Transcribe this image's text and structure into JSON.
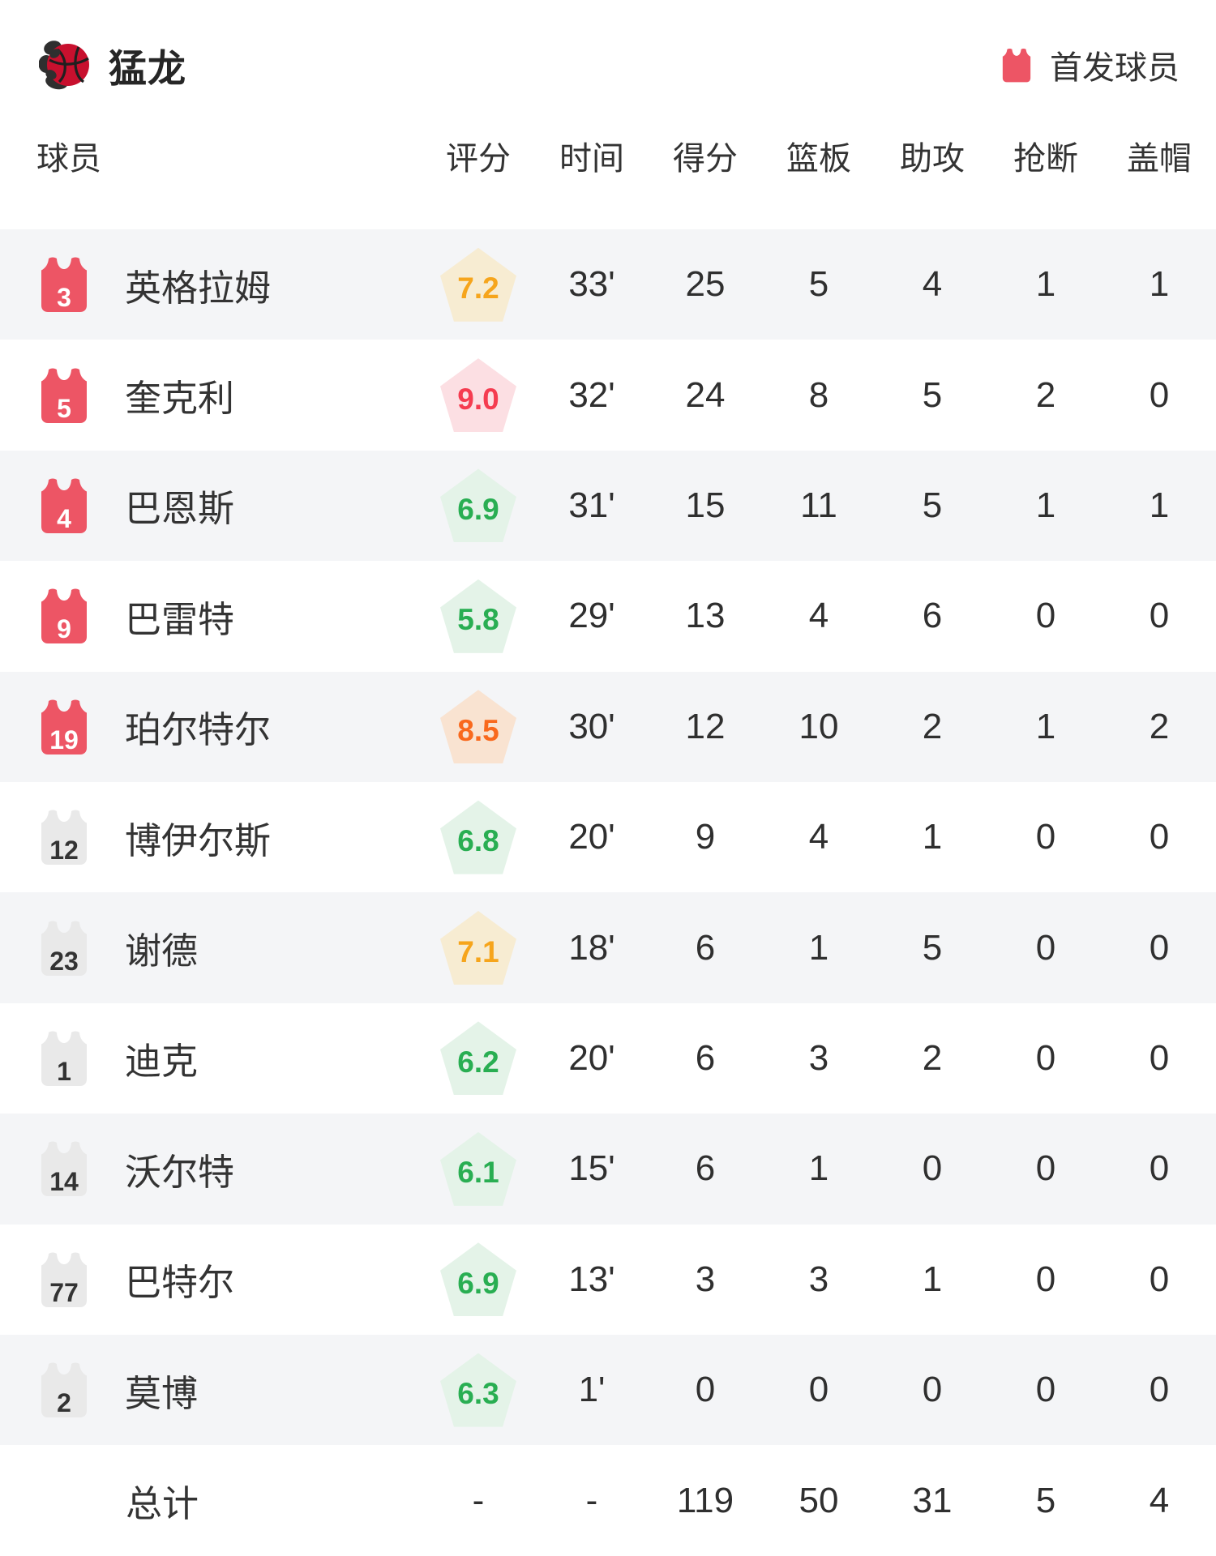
{
  "header": {
    "team_name": "猛龙",
    "legend_label": "首发球员"
  },
  "columns": [
    "球员",
    "评分",
    "时间",
    "得分",
    "篮板",
    "助攻",
    "抢断",
    "盖帽"
  ],
  "colors": {
    "starter_jersey": "#ed5565",
    "starter_jersey_number": "#ffffff",
    "bench_jersey": "#e9e9e9",
    "bench_jersey_number": "#333333",
    "row_alt_bg": "#f4f5f7",
    "logo_ball_red": "#c8102e",
    "logo_claw_black": "#2f2f2f",
    "rating_tiers": {
      "green": {
        "text": "#29ae52",
        "bg": "#e4f3e8"
      },
      "amber": {
        "text": "#f6a51c",
        "bg": "#f7ecd2"
      },
      "orange": {
        "text": "#f9691d",
        "bg": "#f9e3d1"
      },
      "red": {
        "text": "#f53c50",
        "bg": "#fcdfe3"
      }
    }
  },
  "players": [
    {
      "number": "3",
      "starter": true,
      "name": "英格拉姆",
      "rating": "7.2",
      "rating_tier": "amber",
      "minutes": "33'",
      "points": "25",
      "rebounds": "5",
      "assists": "4",
      "steals": "1",
      "blocks": "1"
    },
    {
      "number": "5",
      "starter": true,
      "name": "奎克利",
      "rating": "9.0",
      "rating_tier": "red",
      "minutes": "32'",
      "points": "24",
      "rebounds": "8",
      "assists": "5",
      "steals": "2",
      "blocks": "0"
    },
    {
      "number": "4",
      "starter": true,
      "name": "巴恩斯",
      "rating": "6.9",
      "rating_tier": "green",
      "minutes": "31'",
      "points": "15",
      "rebounds": "11",
      "assists": "5",
      "steals": "1",
      "blocks": "1"
    },
    {
      "number": "9",
      "starter": true,
      "name": "巴雷特",
      "rating": "5.8",
      "rating_tier": "green",
      "minutes": "29'",
      "points": "13",
      "rebounds": "4",
      "assists": "6",
      "steals": "0",
      "blocks": "0"
    },
    {
      "number": "19",
      "starter": true,
      "name": "珀尔特尔",
      "rating": "8.5",
      "rating_tier": "orange",
      "minutes": "30'",
      "points": "12",
      "rebounds": "10",
      "assists": "2",
      "steals": "1",
      "blocks": "2"
    },
    {
      "number": "12",
      "starter": false,
      "name": "博伊尔斯",
      "rating": "6.8",
      "rating_tier": "green",
      "minutes": "20'",
      "points": "9",
      "rebounds": "4",
      "assists": "1",
      "steals": "0",
      "blocks": "0"
    },
    {
      "number": "23",
      "starter": false,
      "name": "谢德",
      "rating": "7.1",
      "rating_tier": "amber",
      "minutes": "18'",
      "points": "6",
      "rebounds": "1",
      "assists": "5",
      "steals": "0",
      "blocks": "0"
    },
    {
      "number": "1",
      "starter": false,
      "name": "迪克",
      "rating": "6.2",
      "rating_tier": "green",
      "minutes": "20'",
      "points": "6",
      "rebounds": "3",
      "assists": "2",
      "steals": "0",
      "blocks": "0"
    },
    {
      "number": "14",
      "starter": false,
      "name": "沃尔特",
      "rating": "6.1",
      "rating_tier": "green",
      "minutes": "15'",
      "points": "6",
      "rebounds": "1",
      "assists": "0",
      "steals": "0",
      "blocks": "0"
    },
    {
      "number": "77",
      "starter": false,
      "name": "巴特尔",
      "rating": "6.9",
      "rating_tier": "green",
      "minutes": "13'",
      "points": "3",
      "rebounds": "3",
      "assists": "1",
      "steals": "0",
      "blocks": "0"
    },
    {
      "number": "2",
      "starter": false,
      "name": "莫博",
      "rating": "6.3",
      "rating_tier": "green",
      "minutes": "1'",
      "points": "0",
      "rebounds": "0",
      "assists": "0",
      "steals": "0",
      "blocks": "0"
    }
  ],
  "totals": {
    "label": "总计",
    "rating": "-",
    "minutes": "-",
    "points": "119",
    "rebounds": "50",
    "assists": "31",
    "steals": "5",
    "blocks": "4"
  }
}
